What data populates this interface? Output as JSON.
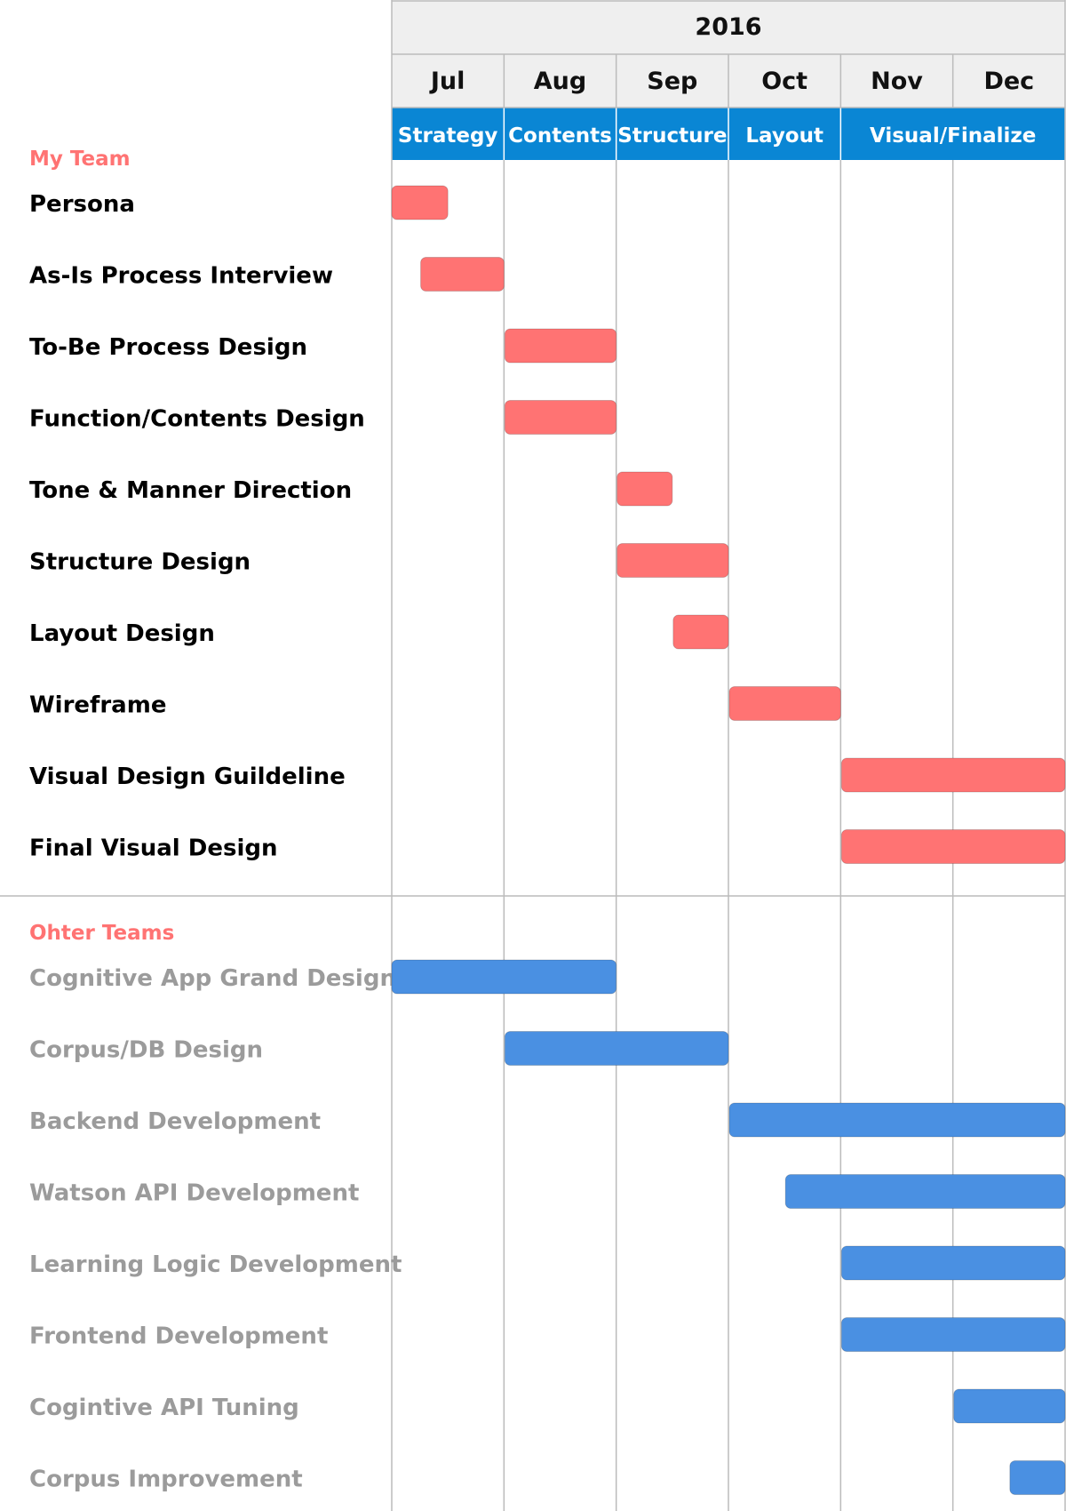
{
  "chart_data": {
    "type": "gantt",
    "year": "2016",
    "months": [
      "Jul",
      "Aug",
      "Sep",
      "Oct",
      "Nov",
      "Dec"
    ],
    "phases": [
      {
        "label": "Strategy",
        "start": 0,
        "end": 1
      },
      {
        "label": "Contents",
        "start": 1,
        "end": 2
      },
      {
        "label": "Structure",
        "start": 2,
        "end": 3
      },
      {
        "label": "Layout",
        "start": 3,
        "end": 4
      },
      {
        "label": "Visual/Finalize",
        "start": 4,
        "end": 6
      }
    ],
    "groups": [
      {
        "name": "My Team",
        "bar_color": "#ff7373",
        "label_color": "#000000",
        "tasks": [
          {
            "label": "Persona",
            "start": 0.0,
            "end": 0.5
          },
          {
            "label": "As-Is Process Interview",
            "start": 0.25,
            "end": 1.0
          },
          {
            "label": "To-Be Process Design",
            "start": 1.0,
            "end": 2.0
          },
          {
            "label": "Function/Contents Design",
            "start": 1.0,
            "end": 2.0
          },
          {
            "label": "Tone & Manner Direction",
            "start": 2.0,
            "end": 2.5
          },
          {
            "label": "Structure Design",
            "start": 2.0,
            "end": 3.0
          },
          {
            "label": "Layout Design",
            "start": 2.5,
            "end": 3.0
          },
          {
            "label": "Wireframe",
            "start": 3.0,
            "end": 4.0
          },
          {
            "label": "Visual Design Guildeline",
            "start": 4.0,
            "end": 6.0
          },
          {
            "label": "Final Visual Design",
            "start": 4.0,
            "end": 6.0
          }
        ]
      },
      {
        "name": "Ohter Teams",
        "bar_color": "#4a90e2",
        "label_color": "#9b9b9b",
        "tasks": [
          {
            "label": "Cognitive App Grand Design",
            "start": 0.0,
            "end": 2.0
          },
          {
            "label": "Corpus/DB Design",
            "start": 1.0,
            "end": 3.0
          },
          {
            "label": "Backend Development",
            "start": 3.0,
            "end": 6.0
          },
          {
            "label": "Watson API Development",
            "start": 3.5,
            "end": 6.0
          },
          {
            "label": "Learning Logic Development",
            "start": 4.0,
            "end": 6.0
          },
          {
            "label": "Frontend Development",
            "start": 4.0,
            "end": 6.0
          },
          {
            "label": "Cogintive API Tuning",
            "start": 5.0,
            "end": 6.0
          },
          {
            "label": "Corpus Improvement",
            "start": 5.5,
            "end": 6.0
          }
        ]
      }
    ],
    "colors": {
      "header_bg": "#efefef",
      "phase_bg": "#0a86d4",
      "phase_text": "#ffffff",
      "group_title": "#ff7373",
      "grid": "#bbbbbb"
    }
  }
}
